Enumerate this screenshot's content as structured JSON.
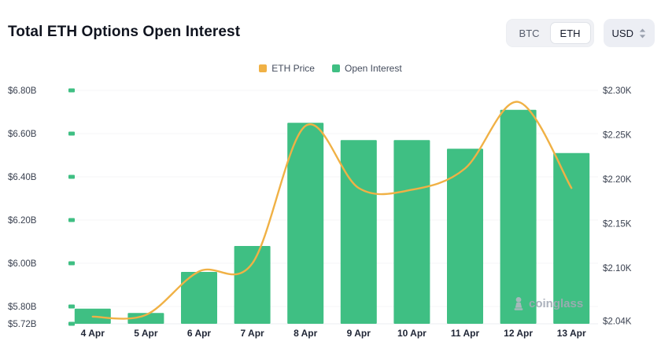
{
  "header": {
    "title": "Total ETH Options Open Interest",
    "coin_toggle": {
      "options": [
        "BTC",
        "ETH"
      ],
      "selected": "ETH"
    },
    "currency_dropdown": {
      "label": "USD"
    }
  },
  "legend": {
    "items": [
      {
        "label": "ETH Price",
        "color": "#f0b145"
      },
      {
        "label": "Open Interest",
        "color": "#3fbf83"
      }
    ]
  },
  "watermark": {
    "text": "coinglass"
  },
  "chart_data": {
    "type": "bar+line",
    "title": "Total ETH Options Open Interest",
    "categories": [
      "4 Apr",
      "5 Apr",
      "6 Apr",
      "7 Apr",
      "8 Apr",
      "9 Apr",
      "10 Apr",
      "11 Apr",
      "12 Apr",
      "13 Apr"
    ],
    "series": [
      {
        "name": "Open Interest",
        "type": "bar",
        "axis": "left",
        "color": "#3fbf83",
        "unit": "$B",
        "values": [
          5.79,
          5.77,
          5.96,
          6.08,
          6.65,
          6.57,
          6.57,
          6.53,
          6.71,
          6.51
        ]
      },
      {
        "name": "ETH Price",
        "type": "line",
        "axis": "right",
        "color": "#f0b145",
        "unit": "$K",
        "values": [
          2.045,
          2.047,
          2.096,
          2.105,
          2.26,
          2.19,
          2.188,
          2.212,
          2.287,
          2.19
        ]
      }
    ],
    "left_axis": {
      "min": 5.72,
      "max": 6.8,
      "ticks": [
        {
          "value": 6.8,
          "label": "$6.80B"
        },
        {
          "value": 6.6,
          "label": "$6.60B"
        },
        {
          "value": 6.4,
          "label": "$6.40B"
        },
        {
          "value": 6.2,
          "label": "$6.20B"
        },
        {
          "value": 6.0,
          "label": "$6.00B"
        },
        {
          "value": 5.8,
          "label": "$5.80B"
        },
        {
          "value": 5.72,
          "label": "$5.72B"
        }
      ]
    },
    "right_axis": {
      "min": 2.037,
      "max": 2.3,
      "ticks": [
        {
          "value": 2.3,
          "label": "$2.30K"
        },
        {
          "value": 2.25,
          "label": "$2.25K"
        },
        {
          "value": 2.2,
          "label": "$2.20K"
        },
        {
          "value": 2.15,
          "label": "$2.15K"
        },
        {
          "value": 2.1,
          "label": "$2.10K"
        },
        {
          "value": 2.04,
          "label": "$2.04K"
        }
      ]
    },
    "grid": true,
    "legend_position": "top-center"
  }
}
